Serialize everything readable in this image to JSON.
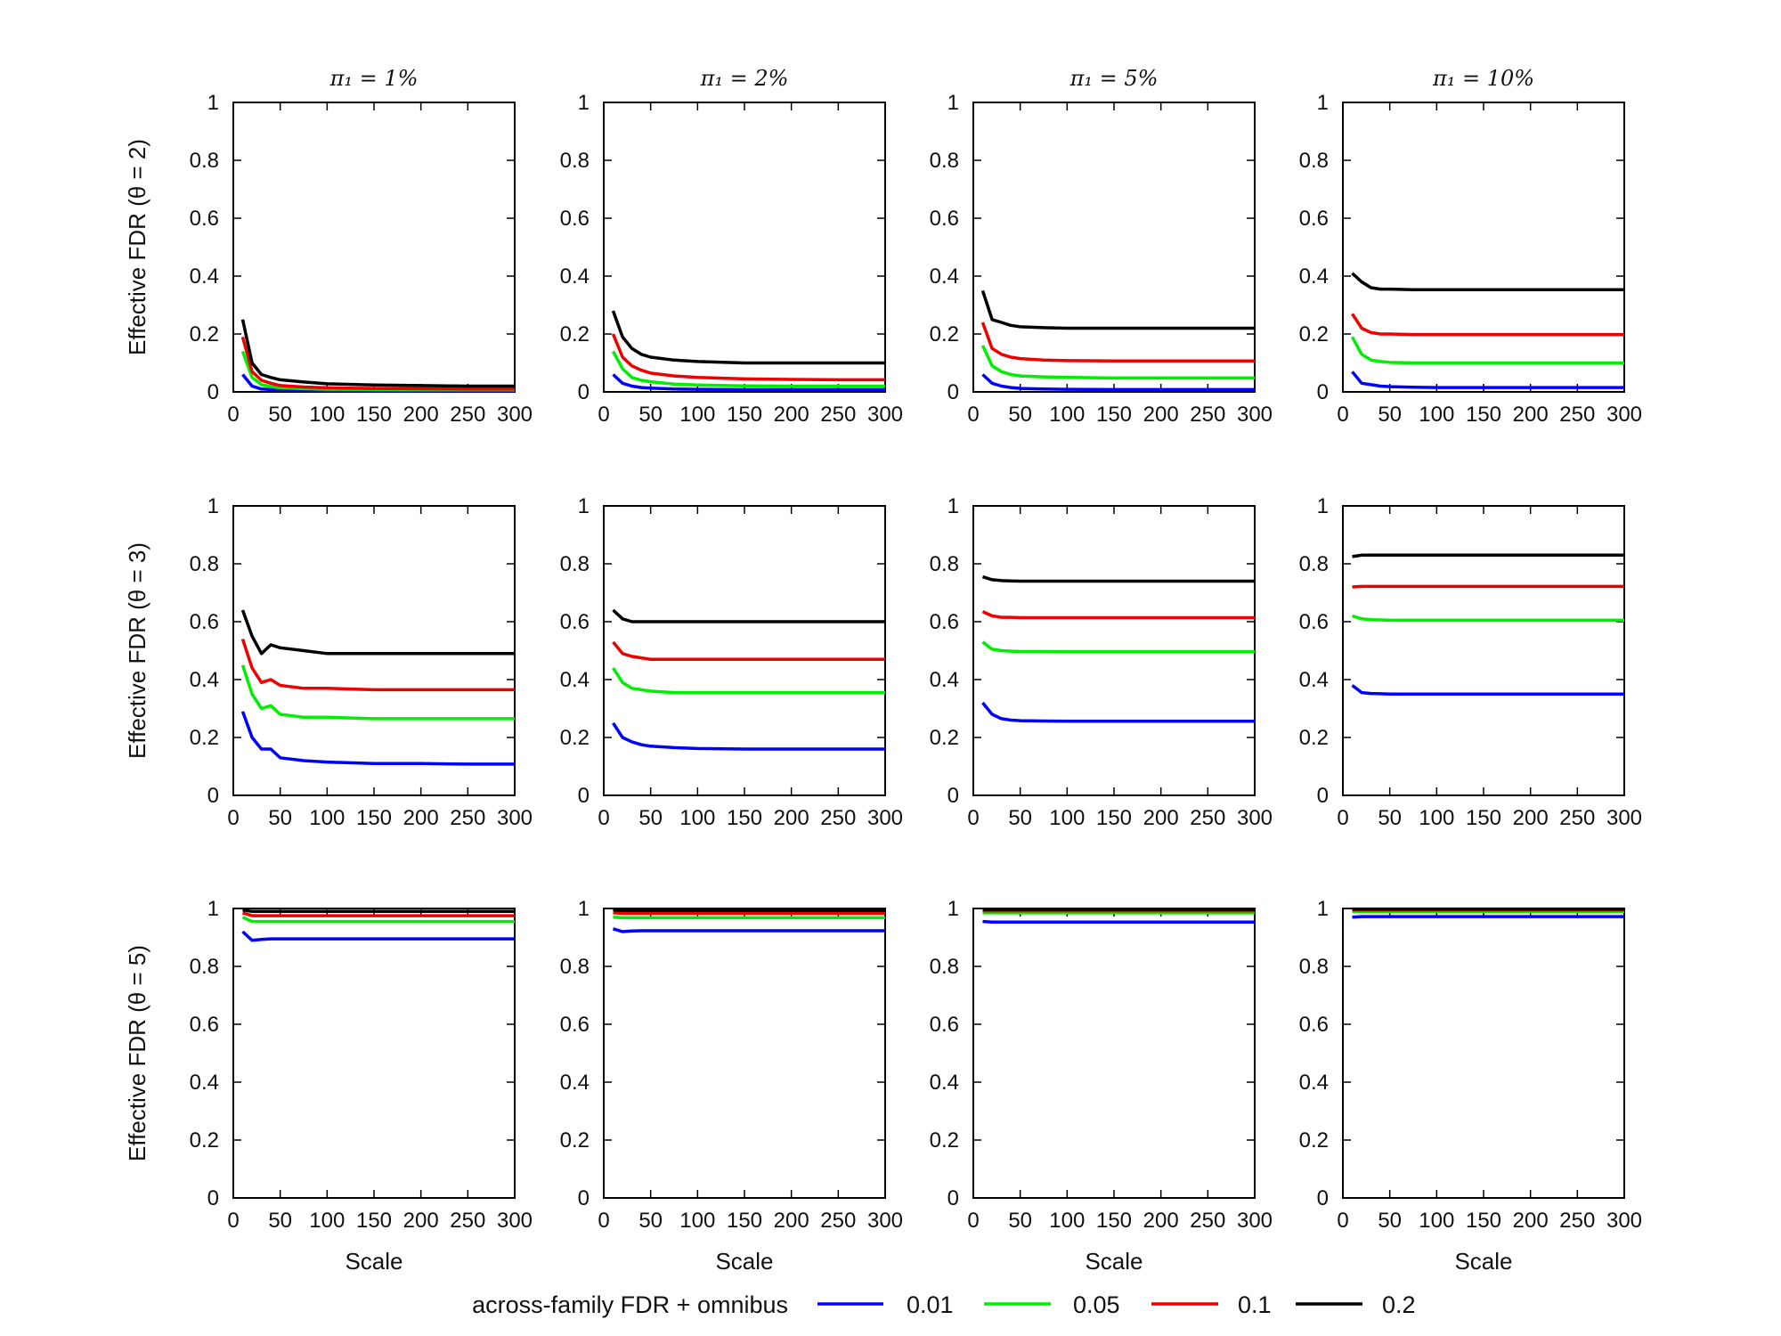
{
  "legend": {
    "title": "across-family FDR + omnibus",
    "items": [
      {
        "label": "0.01",
        "color": "#0000ff"
      },
      {
        "label": "0.05",
        "color": "#00ee00"
      },
      {
        "label": "0.1",
        "color": "#ee0000"
      },
      {
        "label": "0.2",
        "color": "#000000"
      }
    ]
  },
  "col_titles": [
    "π₁ = 1%",
    "π₁ = 2%",
    "π₁ = 5%",
    "π₁ = 10%"
  ],
  "row_labels": [
    "Effective FDR (θ = 2)",
    "Effective FDR (θ = 3)",
    "Effective FDR (θ = 5)"
  ],
  "x_label": "Scale",
  "chart_data": {
    "type": "line",
    "layout": "grid 3 rows x 4 columns",
    "xlim": [
      0,
      300
    ],
    "ylim": [
      0,
      1
    ],
    "xticks": [
      "0",
      "50",
      "100",
      "150",
      "200",
      "250",
      "300"
    ],
    "yticks": [
      "0",
      "0.2",
      "0.4",
      "0.6",
      "0.8",
      "1"
    ],
    "x": [
      10,
      20,
      30,
      40,
      50,
      75,
      100,
      150,
      200,
      250,
      300
    ],
    "panels": [
      {
        "row": 0,
        "col": 0,
        "series": [
          {
            "name": "0.01",
            "values": [
              0.06,
              0.02,
              0.01,
              0.008,
              0.006,
              0.005,
              0.004,
              0.003,
              0.003,
              0.003,
              0.003
            ]
          },
          {
            "name": "0.05",
            "values": [
              0.14,
              0.05,
              0.025,
              0.018,
              0.014,
              0.011,
              0.009,
              0.008,
              0.007,
              0.007,
              0.007
            ]
          },
          {
            "name": "0.1",
            "values": [
              0.19,
              0.07,
              0.04,
              0.03,
              0.022,
              0.017,
              0.014,
              0.012,
              0.011,
              0.01,
              0.01
            ]
          },
          {
            "name": "0.2",
            "values": [
              0.25,
              0.1,
              0.06,
              0.05,
              0.042,
              0.034,
              0.028,
              0.024,
              0.022,
              0.02,
              0.02
            ]
          }
        ]
      },
      {
        "row": 0,
        "col": 1,
        "series": [
          {
            "name": "0.01",
            "values": [
              0.06,
              0.03,
              0.02,
              0.015,
              0.013,
              0.01,
              0.009,
              0.008,
              0.008,
              0.008,
              0.008
            ]
          },
          {
            "name": "0.05",
            "values": [
              0.14,
              0.08,
              0.05,
              0.04,
              0.035,
              0.027,
              0.024,
              0.021,
              0.02,
              0.02,
              0.02
            ]
          },
          {
            "name": "0.1",
            "values": [
              0.2,
              0.12,
              0.09,
              0.075,
              0.065,
              0.055,
              0.05,
              0.045,
              0.043,
              0.042,
              0.042
            ]
          },
          {
            "name": "0.2",
            "values": [
              0.28,
              0.19,
              0.15,
              0.13,
              0.12,
              0.11,
              0.105,
              0.1,
              0.1,
              0.1,
              0.1
            ]
          }
        ]
      },
      {
        "row": 0,
        "col": 2,
        "series": [
          {
            "name": "0.01",
            "values": [
              0.06,
              0.03,
              0.02,
              0.015,
              0.012,
              0.01,
              0.009,
              0.008,
              0.008,
              0.008,
              0.008
            ]
          },
          {
            "name": "0.05",
            "values": [
              0.16,
              0.09,
              0.07,
              0.06,
              0.055,
              0.052,
              0.05,
              0.048,
              0.048,
              0.048,
              0.048
            ]
          },
          {
            "name": "0.1",
            "values": [
              0.24,
              0.15,
              0.13,
              0.12,
              0.115,
              0.11,
              0.108,
              0.107,
              0.107,
              0.107,
              0.107
            ]
          },
          {
            "name": "0.2",
            "values": [
              0.35,
              0.25,
              0.24,
              0.23,
              0.225,
              0.222,
              0.22,
              0.22,
              0.22,
              0.22,
              0.22
            ]
          }
        ]
      },
      {
        "row": 0,
        "col": 3,
        "series": [
          {
            "name": "0.01",
            "values": [
              0.07,
              0.03,
              0.025,
              0.02,
              0.018,
              0.016,
              0.015,
              0.015,
              0.015,
              0.015,
              0.015
            ]
          },
          {
            "name": "0.05",
            "values": [
              0.19,
              0.13,
              0.11,
              0.105,
              0.102,
              0.1,
              0.1,
              0.1,
              0.1,
              0.1,
              0.1
            ]
          },
          {
            "name": "0.1",
            "values": [
              0.27,
              0.22,
              0.205,
              0.2,
              0.2,
              0.198,
              0.198,
              0.198,
              0.198,
              0.198,
              0.198
            ]
          },
          {
            "name": "0.2",
            "values": [
              0.41,
              0.38,
              0.36,
              0.355,
              0.355,
              0.353,
              0.353,
              0.353,
              0.353,
              0.353,
              0.353
            ]
          }
        ]
      },
      {
        "row": 1,
        "col": 0,
        "series": [
          {
            "name": "0.01",
            "values": [
              0.29,
              0.2,
              0.16,
              0.16,
              0.13,
              0.12,
              0.115,
              0.11,
              0.11,
              0.108,
              0.108
            ]
          },
          {
            "name": "0.05",
            "values": [
              0.45,
              0.35,
              0.3,
              0.31,
              0.28,
              0.27,
              0.27,
              0.265,
              0.265,
              0.265,
              0.265
            ]
          },
          {
            "name": "0.1",
            "values": [
              0.54,
              0.44,
              0.39,
              0.4,
              0.38,
              0.37,
              0.37,
              0.365,
              0.365,
              0.365,
              0.365
            ]
          },
          {
            "name": "0.2",
            "values": [
              0.64,
              0.55,
              0.49,
              0.52,
              0.51,
              0.5,
              0.49,
              0.49,
              0.49,
              0.49,
              0.49
            ]
          }
        ]
      },
      {
        "row": 1,
        "col": 1,
        "series": [
          {
            "name": "0.01",
            "values": [
              0.25,
              0.2,
              0.185,
              0.175,
              0.17,
              0.165,
              0.162,
              0.16,
              0.16,
              0.16,
              0.16
            ]
          },
          {
            "name": "0.05",
            "values": [
              0.44,
              0.39,
              0.37,
              0.365,
              0.36,
              0.355,
              0.355,
              0.355,
              0.355,
              0.355,
              0.355
            ]
          },
          {
            "name": "0.1",
            "values": [
              0.53,
              0.49,
              0.48,
              0.475,
              0.47,
              0.47,
              0.47,
              0.47,
              0.47,
              0.47,
              0.47
            ]
          },
          {
            "name": "0.2",
            "values": [
              0.64,
              0.61,
              0.6,
              0.6,
              0.6,
              0.6,
              0.6,
              0.6,
              0.6,
              0.6,
              0.6
            ]
          }
        ]
      },
      {
        "row": 1,
        "col": 2,
        "series": [
          {
            "name": "0.01",
            "values": [
              0.32,
              0.28,
              0.265,
              0.26,
              0.258,
              0.257,
              0.256,
              0.256,
              0.256,
              0.256,
              0.256
            ]
          },
          {
            "name": "0.05",
            "values": [
              0.53,
              0.505,
              0.5,
              0.498,
              0.497,
              0.497,
              0.496,
              0.496,
              0.496,
              0.496,
              0.496
            ]
          },
          {
            "name": "0.1",
            "values": [
              0.635,
              0.62,
              0.615,
              0.615,
              0.614,
              0.614,
              0.614,
              0.614,
              0.614,
              0.614,
              0.614
            ]
          },
          {
            "name": "0.2",
            "values": [
              0.755,
              0.745,
              0.742,
              0.741,
              0.74,
              0.74,
              0.74,
              0.74,
              0.74,
              0.74,
              0.74
            ]
          }
        ]
      },
      {
        "row": 1,
        "col": 3,
        "series": [
          {
            "name": "0.01",
            "values": [
              0.38,
              0.355,
              0.352,
              0.351,
              0.35,
              0.35,
              0.35,
              0.35,
              0.35,
              0.35,
              0.35
            ]
          },
          {
            "name": "0.05",
            "values": [
              0.62,
              0.61,
              0.607,
              0.606,
              0.605,
              0.605,
              0.605,
              0.605,
              0.605,
              0.605,
              0.605
            ]
          },
          {
            "name": "0.1",
            "values": [
              0.72,
              0.722,
              0.722,
              0.722,
              0.722,
              0.722,
              0.722,
              0.722,
              0.722,
              0.722,
              0.722
            ]
          },
          {
            "name": "0.2",
            "values": [
              0.825,
              0.83,
              0.83,
              0.83,
              0.83,
              0.83,
              0.83,
              0.83,
              0.83,
              0.83,
              0.83
            ]
          }
        ]
      },
      {
        "row": 2,
        "col": 0,
        "series": [
          {
            "name": "0.01",
            "values": [
              0.92,
              0.89,
              0.893,
              0.895,
              0.895,
              0.895,
              0.895,
              0.895,
              0.895,
              0.895,
              0.895
            ]
          },
          {
            "name": "0.05",
            "values": [
              0.97,
              0.955,
              0.955,
              0.955,
              0.955,
              0.955,
              0.955,
              0.955,
              0.955,
              0.955,
              0.955
            ]
          },
          {
            "name": "0.1",
            "values": [
              0.985,
              0.975,
              0.975,
              0.975,
              0.975,
              0.975,
              0.975,
              0.975,
              0.975,
              0.975,
              0.975
            ]
          },
          {
            "name": "0.2",
            "values": [
              0.995,
              0.99,
              0.99,
              0.99,
              0.99,
              0.99,
              0.99,
              0.99,
              0.99,
              0.99,
              0.99
            ]
          }
        ]
      },
      {
        "row": 2,
        "col": 1,
        "series": [
          {
            "name": "0.01",
            "values": [
              0.93,
              0.92,
              0.922,
              0.923,
              0.923,
              0.923,
              0.923,
              0.923,
              0.923,
              0.923,
              0.923
            ]
          },
          {
            "name": "0.05",
            "values": [
              0.97,
              0.968,
              0.968,
              0.968,
              0.968,
              0.968,
              0.968,
              0.968,
              0.968,
              0.968,
              0.968
            ]
          },
          {
            "name": "0.1",
            "values": [
              0.985,
              0.983,
              0.983,
              0.983,
              0.983,
              0.983,
              0.983,
              0.983,
              0.983,
              0.983,
              0.983
            ]
          },
          {
            "name": "0.2",
            "values": [
              0.995,
              0.993,
              0.993,
              0.993,
              0.993,
              0.993,
              0.993,
              0.993,
              0.993,
              0.993,
              0.993
            ]
          }
        ]
      },
      {
        "row": 2,
        "col": 2,
        "series": [
          {
            "name": "0.01",
            "values": [
              0.955,
              0.953,
              0.953,
              0.953,
              0.953,
              0.953,
              0.953,
              0.953,
              0.953,
              0.953,
              0.953
            ]
          },
          {
            "name": "0.05",
            "values": [
              0.985,
              0.985,
              0.985,
              0.985,
              0.985,
              0.985,
              0.985,
              0.985,
              0.985,
              0.985,
              0.985
            ]
          },
          {
            "name": "0.1",
            "values": [
              0.992,
              0.992,
              0.992,
              0.992,
              0.992,
              0.992,
              0.992,
              0.992,
              0.992,
              0.992,
              0.992
            ]
          },
          {
            "name": "0.2",
            "values": [
              0.997,
              0.997,
              0.997,
              0.997,
              0.997,
              0.997,
              0.997,
              0.997,
              0.997,
              0.997,
              0.997
            ]
          }
        ]
      },
      {
        "row": 2,
        "col": 3,
        "series": [
          {
            "name": "0.01",
            "values": [
              0.97,
              0.972,
              0.972,
              0.972,
              0.972,
              0.972,
              0.972,
              0.972,
              0.972,
              0.972,
              0.972
            ]
          },
          {
            "name": "0.05",
            "values": [
              0.99,
              0.99,
              0.99,
              0.99,
              0.99,
              0.99,
              0.99,
              0.99,
              0.99,
              0.99,
              0.99
            ]
          },
          {
            "name": "0.1",
            "values": [
              0.995,
              0.995,
              0.995,
              0.995,
              0.995,
              0.995,
              0.995,
              0.995,
              0.995,
              0.995,
              0.995
            ]
          },
          {
            "name": "0.2",
            "values": [
              0.998,
              0.998,
              0.998,
              0.998,
              0.998,
              0.998,
              0.998,
              0.998,
              0.998,
              0.998,
              0.998
            ]
          }
        ]
      }
    ]
  }
}
